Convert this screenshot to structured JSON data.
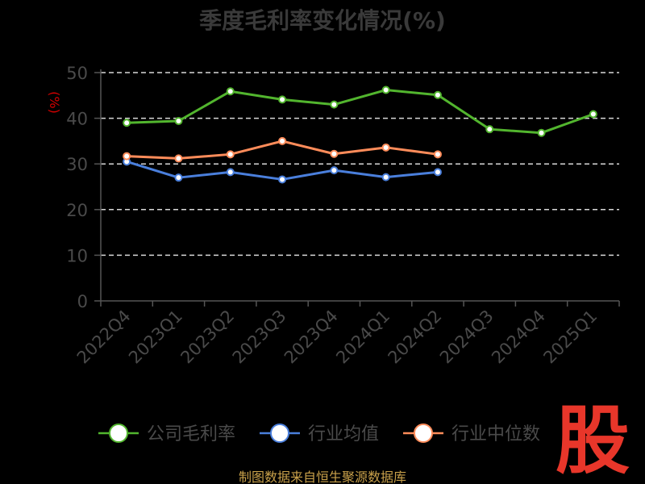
{
  "chart_data": {
    "type": "line",
    "title": "季度毛利率变化情况(%)",
    "ylabel": "(%)",
    "categories": [
      "2022Q4",
      "2023Q1",
      "2023Q2",
      "2023Q3",
      "2023Q4",
      "2024Q1",
      "2024Q2",
      "2024Q3",
      "2024Q4",
      "2025Q1"
    ],
    "ylim": [
      0,
      50
    ],
    "yticks": [
      0,
      10,
      20,
      30,
      40,
      50
    ],
    "grid": true,
    "legend_position": "bottom",
    "series": [
      {
        "name": "公司毛利率",
        "color": "#52b52e",
        "values": [
          39.0,
          39.4,
          45.9,
          44.1,
          43.0,
          46.2,
          45.1,
          37.6,
          36.8,
          40.9
        ]
      },
      {
        "name": "行业均值",
        "color": "#4a7fdc",
        "values": [
          30.5,
          27.0,
          28.2,
          26.6,
          28.6,
          27.1,
          28.2,
          null,
          null,
          null
        ]
      },
      {
        "name": "行业中位数",
        "color": "#ff8c5a",
        "values": [
          31.7,
          31.2,
          32.1,
          35.0,
          32.2,
          33.6,
          32.1,
          null,
          null,
          null
        ]
      }
    ]
  },
  "footer": {
    "source": "制图数据来自恒生聚源数据库"
  },
  "watermark": {
    "text": "股"
  }
}
